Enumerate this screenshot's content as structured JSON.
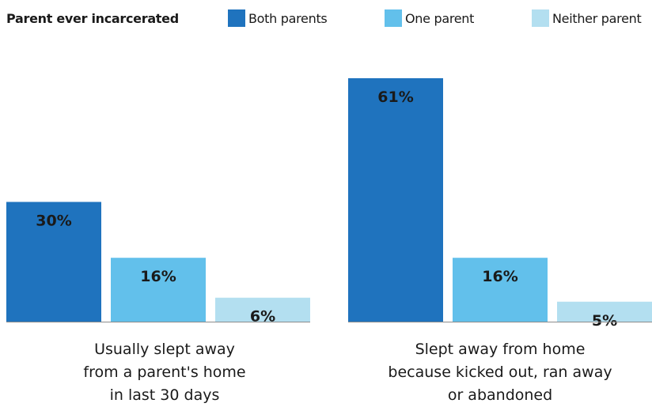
{
  "legend": {
    "title": "Parent ever incarcerated",
    "items": [
      {
        "label": "Both parents",
        "color": "#1f73be"
      },
      {
        "label": "One parent",
        "color": "#62c0eb"
      },
      {
        "label": "Neither parent",
        "color": "#b3dff0"
      }
    ]
  },
  "chart_data": {
    "type": "bar",
    "title": "",
    "xlabel": "",
    "ylabel": "",
    "ylim": [
      0,
      70
    ],
    "grid": false,
    "legend_position": "top",
    "value_suffix": "%",
    "categories": [
      [
        "Usually slept away",
        "from a parent's home",
        "in last 30 days"
      ],
      [
        "Slept away from home",
        "because kicked out, ran away",
        "or abandoned"
      ]
    ],
    "series": [
      {
        "name": "Both parents",
        "color": "#1f73be",
        "values": [
          30,
          61
        ]
      },
      {
        "name": "One parent",
        "color": "#62c0eb",
        "values": [
          16,
          16
        ]
      },
      {
        "name": "Neither parent",
        "color": "#b3dff0",
        "values": [
          6,
          5
        ]
      }
    ]
  }
}
